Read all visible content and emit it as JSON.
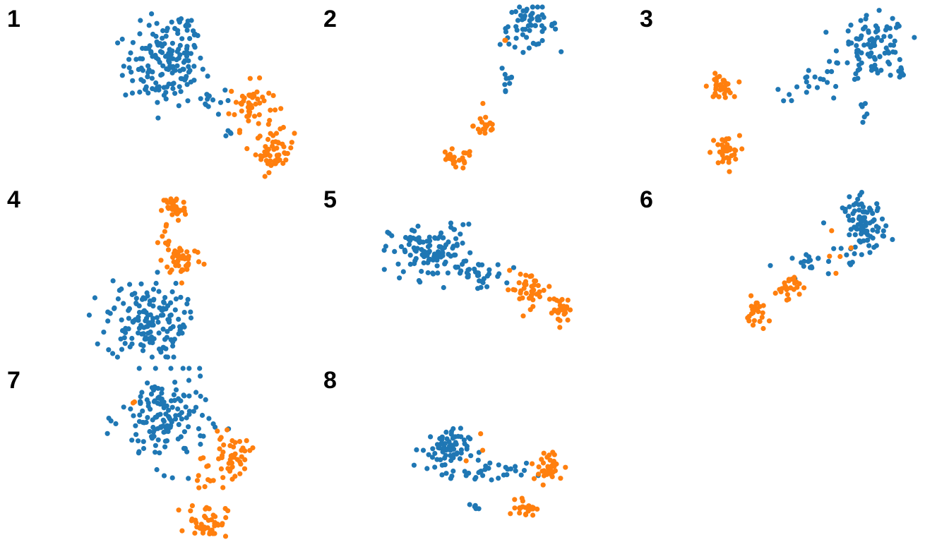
{
  "colors": {
    "blue": "#1f77b4",
    "orange": "#ff7f0e",
    "background": "#ffffff"
  },
  "chart_data": [
    {
      "type": "scatter",
      "label": "1",
      "xlim": [
        0,
        1
      ],
      "ylim": [
        0,
        1
      ],
      "clusters": [
        {
          "color": "blue",
          "x": 0.42,
          "y": 0.66,
          "sx": 0.085,
          "sy": 0.12,
          "n": 150
        },
        {
          "color": "blue",
          "x": 0.52,
          "y": 0.9,
          "sx": 0.04,
          "sy": 0.03,
          "n": 14
        },
        {
          "color": "blue",
          "x": 0.6,
          "y": 0.45,
          "sx": 0.05,
          "sy": 0.04,
          "n": 14
        },
        {
          "color": "blue",
          "x": 0.69,
          "y": 0.26,
          "sx": 0.01,
          "sy": 0.02,
          "n": 4
        },
        {
          "color": "orange",
          "x": 0.78,
          "y": 0.42,
          "sx": 0.045,
          "sy": 0.07,
          "n": 50
        },
        {
          "color": "orange",
          "x": 0.88,
          "y": 0.15,
          "sx": 0.04,
          "sy": 0.06,
          "n": 50
        }
      ]
    },
    {
      "type": "scatter",
      "label": "2",
      "xlim": [
        0,
        1
      ],
      "ylim": [
        0,
        1
      ],
      "clusters": [
        {
          "color": "blue",
          "x": 0.62,
          "y": 0.89,
          "sx": 0.06,
          "sy": 0.06,
          "n": 60
        },
        {
          "color": "blue",
          "x": 0.53,
          "y": 0.58,
          "sx": 0.015,
          "sy": 0.07,
          "n": 10
        },
        {
          "color": "orange",
          "x": 0.44,
          "y": 0.3,
          "sx": 0.025,
          "sy": 0.04,
          "n": 20
        },
        {
          "color": "orange",
          "x": 0.31,
          "y": 0.1,
          "sx": 0.04,
          "sy": 0.03,
          "n": 24
        },
        {
          "color": "orange",
          "x": 0.52,
          "y": 0.8,
          "sx": 0.005,
          "sy": 0.005,
          "n": 2
        }
      ]
    },
    {
      "type": "scatter",
      "label": "3",
      "xlim": [
        0,
        1
      ],
      "ylim": [
        0,
        1
      ],
      "clusters": [
        {
          "color": "blue",
          "x": 0.74,
          "y": 0.76,
          "sx": 0.07,
          "sy": 0.09,
          "n": 90
        },
        {
          "color": "blue",
          "x": 0.53,
          "y": 0.55,
          "sx": 0.1,
          "sy": 0.05,
          "n": 22
        },
        {
          "color": "blue",
          "x": 0.85,
          "y": 0.61,
          "sx": 0.01,
          "sy": 0.02,
          "n": 8
        },
        {
          "color": "blue",
          "x": 0.7,
          "y": 0.4,
          "sx": 0.01,
          "sy": 0.02,
          "n": 6
        },
        {
          "color": "orange",
          "x": 0.1,
          "y": 0.53,
          "sx": 0.025,
          "sy": 0.035,
          "n": 35
        },
        {
          "color": "orange",
          "x": 0.12,
          "y": 0.14,
          "sx": 0.03,
          "sy": 0.05,
          "n": 35
        }
      ]
    },
    {
      "type": "scatter",
      "label": "4",
      "xlim": [
        0,
        1
      ],
      "ylim": [
        0,
        1
      ],
      "clusters": [
        {
          "color": "orange",
          "x": 0.46,
          "y": 0.88,
          "sx": 0.025,
          "sy": 0.04,
          "n": 35
        },
        {
          "color": "orange",
          "x": 0.5,
          "y": 0.58,
          "sx": 0.04,
          "sy": 0.05,
          "n": 40
        },
        {
          "color": "orange",
          "x": 0.43,
          "y": 0.67,
          "sx": 0.02,
          "sy": 0.06,
          "n": 10
        },
        {
          "color": "blue",
          "x": 0.34,
          "y": 0.22,
          "sx": 0.08,
          "sy": 0.12,
          "n": 150
        },
        {
          "color": "blue",
          "x": 0.49,
          "y": 0.18,
          "sx": 0.01,
          "sy": 0.01,
          "n": 4
        }
      ]
    },
    {
      "type": "scatter",
      "label": "5",
      "xlim": [
        0,
        1
      ],
      "ylim": [
        0,
        1
      ],
      "clusters": [
        {
          "color": "blue",
          "x": 0.22,
          "y": 0.62,
          "sx": 0.09,
          "sy": 0.08,
          "n": 120
        },
        {
          "color": "blue",
          "x": 0.4,
          "y": 0.48,
          "sx": 0.06,
          "sy": 0.04,
          "n": 30
        },
        {
          "color": "orange",
          "x": 0.62,
          "y": 0.4,
          "sx": 0.05,
          "sy": 0.05,
          "n": 40
        },
        {
          "color": "orange",
          "x": 0.76,
          "y": 0.28,
          "sx": 0.02,
          "sy": 0.04,
          "n": 30
        }
      ]
    },
    {
      "type": "scatter",
      "label": "6",
      "xlim": [
        0,
        1
      ],
      "ylim": [
        0,
        1
      ],
      "clusters": [
        {
          "color": "blue",
          "x": 0.7,
          "y": 0.78,
          "sx": 0.045,
          "sy": 0.08,
          "n": 90
        },
        {
          "color": "blue",
          "x": 0.5,
          "y": 0.55,
          "sx": 0.08,
          "sy": 0.04,
          "n": 20
        },
        {
          "color": "orange",
          "x": 0.38,
          "y": 0.42,
          "sx": 0.025,
          "sy": 0.035,
          "n": 25
        },
        {
          "color": "orange",
          "x": 0.25,
          "y": 0.25,
          "sx": 0.02,
          "sy": 0.05,
          "n": 25
        },
        {
          "color": "orange",
          "x": 0.6,
          "y": 0.62,
          "sx": 0.05,
          "sy": 0.12,
          "n": 5
        }
      ]
    },
    {
      "type": "scatter",
      "label": "7",
      "xlim": [
        0,
        1
      ],
      "ylim": [
        0,
        1
      ],
      "clusters": [
        {
          "color": "blue",
          "x": 0.42,
          "y": 0.7,
          "sx": 0.09,
          "sy": 0.14,
          "n": 150
        },
        {
          "color": "orange",
          "x": 0.7,
          "y": 0.48,
          "sx": 0.04,
          "sy": 0.06,
          "n": 45
        },
        {
          "color": "orange",
          "x": 0.6,
          "y": 0.1,
          "sx": 0.04,
          "sy": 0.05,
          "n": 45
        },
        {
          "color": "orange",
          "x": 0.6,
          "y": 0.32,
          "sx": 0.05,
          "sy": 0.1,
          "n": 12
        },
        {
          "color": "orange",
          "x": 0.29,
          "y": 0.8,
          "sx": 0.005,
          "sy": 0.005,
          "n": 2
        }
      ]
    },
    {
      "type": "scatter",
      "label": "8",
      "xlim": [
        0,
        1
      ],
      "ylim": [
        0,
        1
      ],
      "clusters": [
        {
          "color": "blue",
          "x": 0.27,
          "y": 0.52,
          "sx": 0.05,
          "sy": 0.06,
          "n": 70
        },
        {
          "color": "blue",
          "x": 0.45,
          "y": 0.38,
          "sx": 0.08,
          "sy": 0.03,
          "n": 30
        },
        {
          "color": "blue",
          "x": 0.4,
          "y": 0.18,
          "sx": 0.01,
          "sy": 0.01,
          "n": 5
        },
        {
          "color": "orange",
          "x": 0.7,
          "y": 0.42,
          "sx": 0.035,
          "sy": 0.05,
          "n": 35
        },
        {
          "color": "orange",
          "x": 0.61,
          "y": 0.18,
          "sx": 0.02,
          "sy": 0.025,
          "n": 25
        },
        {
          "color": "orange",
          "x": 0.4,
          "y": 0.52,
          "sx": 0.02,
          "sy": 0.05,
          "n": 3
        }
      ]
    }
  ]
}
